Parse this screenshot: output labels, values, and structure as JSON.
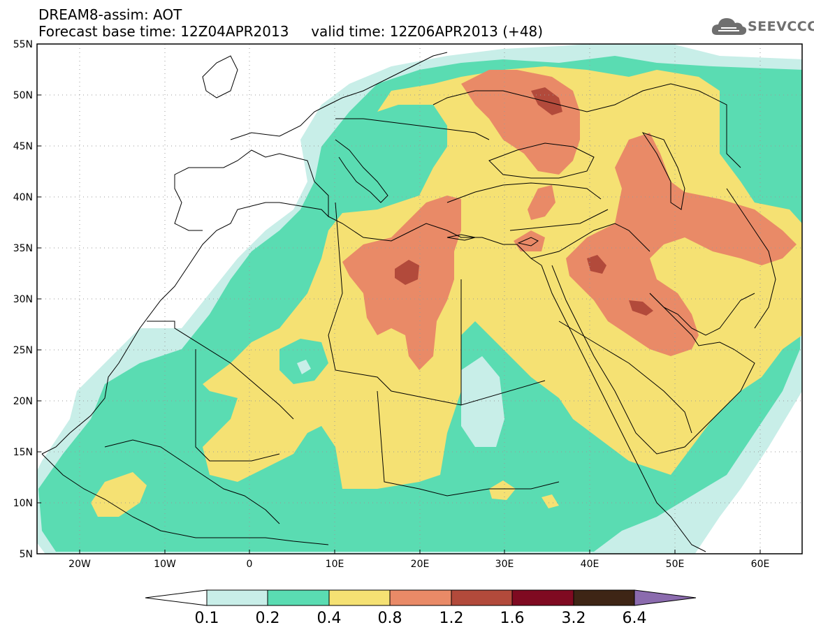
{
  "header": {
    "title_line1": "DREAM8-assim: AOT",
    "title_line2": "Forecast base time: 12Z04APR2013     valid time: 12Z06APR2013 (+48)"
  },
  "logo": {
    "text": "SEEVCCC",
    "icon": "cloud-icon",
    "color": "#6f6f6f"
  },
  "map": {
    "variable": "AOT",
    "lon_range": [
      -25,
      65
    ],
    "lat_range": [
      5,
      55
    ],
    "lon_ticks": [
      "20W",
      "10W",
      "0",
      "10E",
      "20E",
      "30E",
      "40E",
      "50E",
      "60E"
    ],
    "lat_ticks": [
      "55N",
      "50N",
      "45N",
      "40N",
      "35N",
      "30N",
      "25N",
      "20N",
      "15N",
      "10N",
      "5N"
    ],
    "gridlines": "dotted",
    "coastlines": true,
    "borders": true
  },
  "colorbar": {
    "labels": [
      "0.1",
      "0.2",
      "0.4",
      "0.8",
      "1.2",
      "1.6",
      "3.2",
      "6.4"
    ],
    "colors": [
      "#ffffff",
      "#c8eee8",
      "#5adcb2",
      "#f5e173",
      "#e98a67",
      "#b24a3b",
      "#7f0a21",
      "#3e2515",
      "#8b6bae"
    ],
    "extend": "both"
  },
  "palette": {
    "c1": "#c8eee8",
    "c2": "#5adcb2",
    "c3": "#f5e173",
    "c4": "#e98a67",
    "c5": "#b24a3b"
  }
}
